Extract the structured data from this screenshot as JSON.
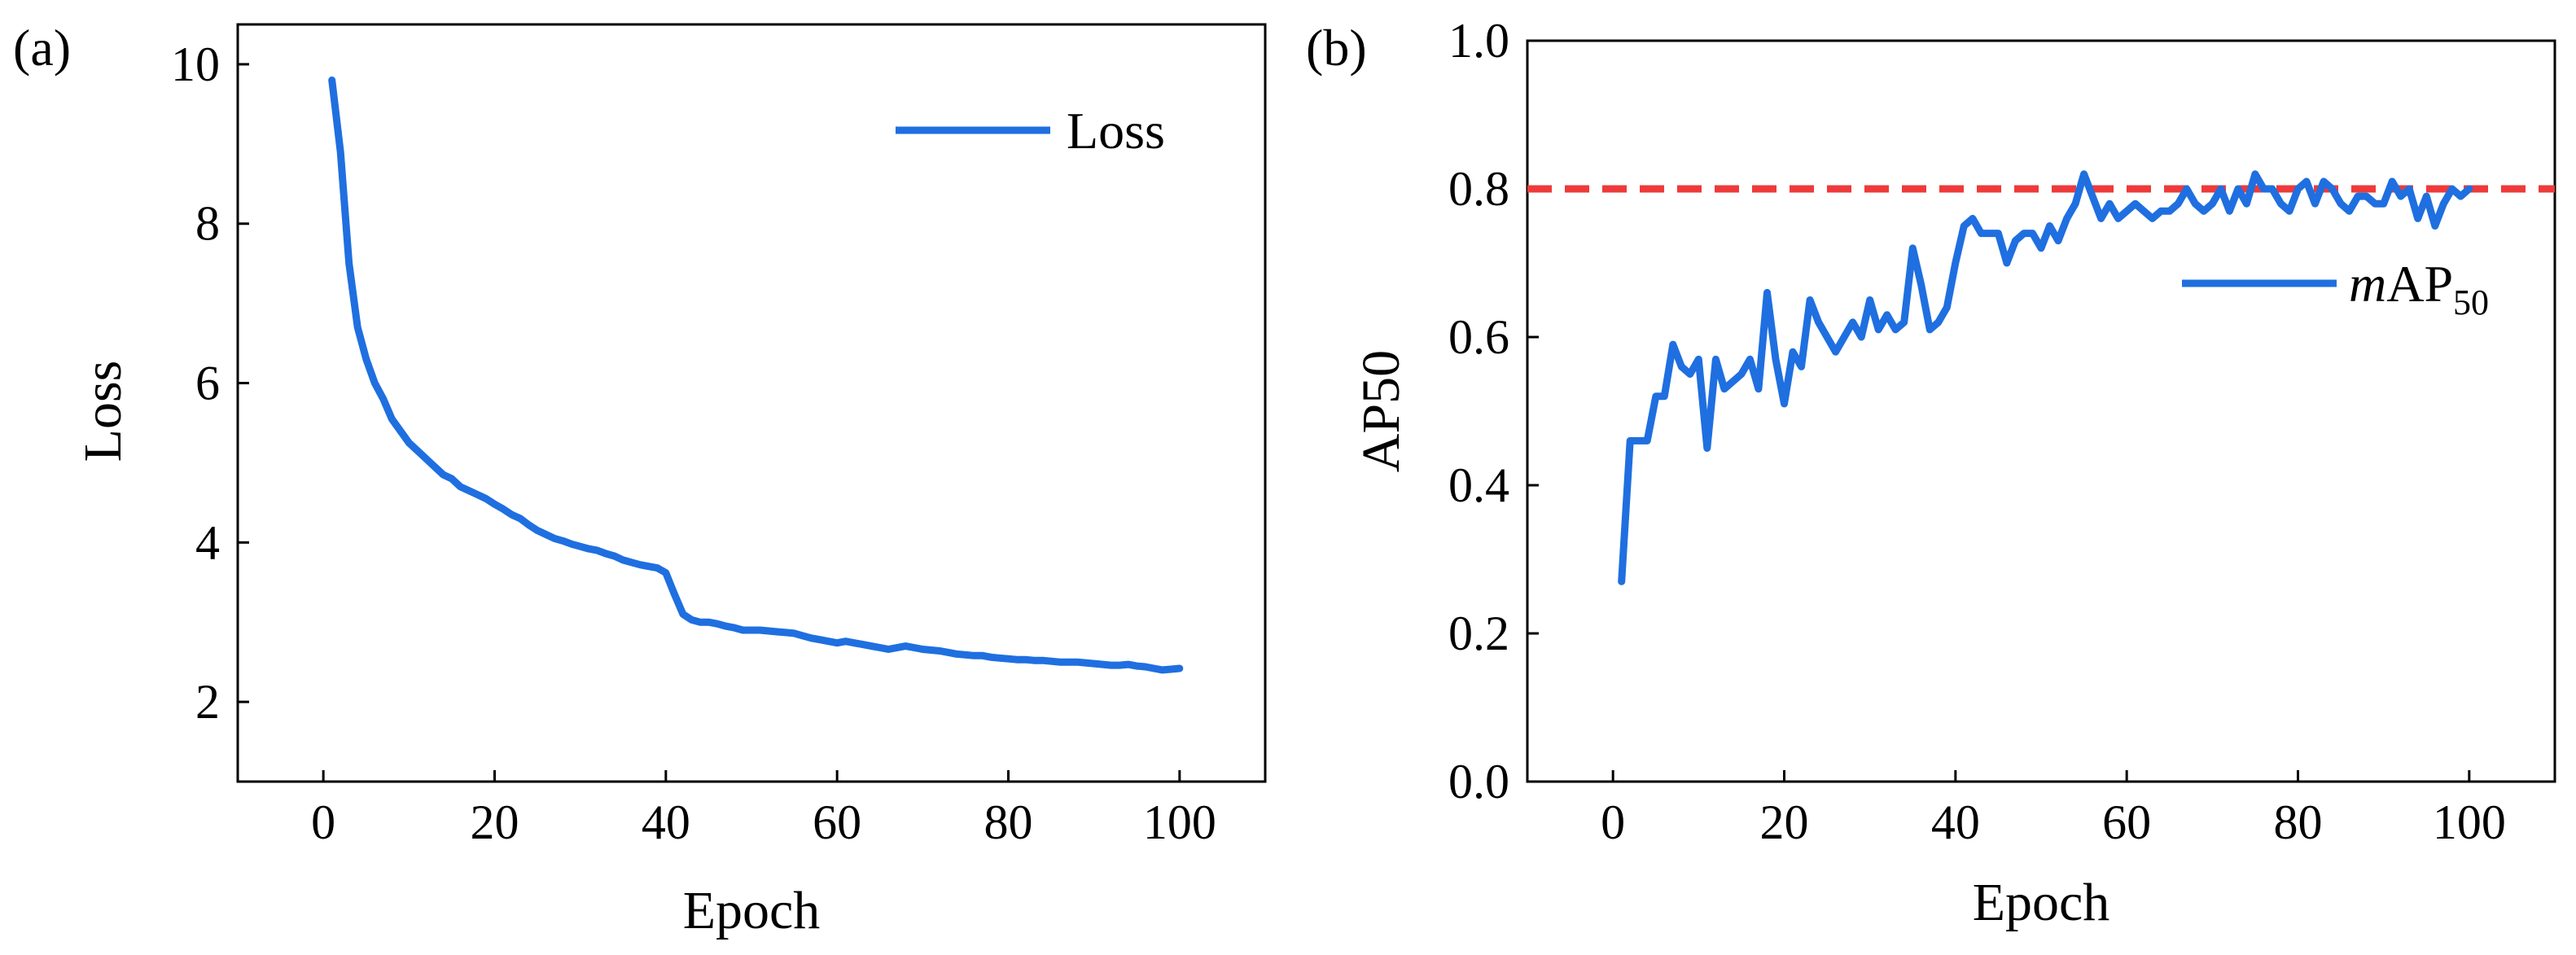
{
  "chart_data": [
    {
      "panel_label": "(a)",
      "type": "line",
      "xlabel": "Epoch",
      "ylabel": "Loss",
      "xlim": [
        -10,
        110
      ],
      "ylim": [
        1,
        10.5
      ],
      "xticks": [
        0,
        20,
        40,
        60,
        80,
        100
      ],
      "yticks": [
        2,
        4,
        6,
        8,
        10
      ],
      "xtick_labels": [
        "0",
        "20",
        "40",
        "60",
        "80",
        "100"
      ],
      "ytick_labels": [
        "2",
        "4",
        "6",
        "8",
        "10"
      ],
      "legend": "top-right",
      "series": [
        {
          "name": "Loss",
          "color": "#1f6fe0",
          "x": [
            1,
            2,
            3,
            4,
            5,
            6,
            7,
            8,
            9,
            10,
            11,
            12,
            13,
            14,
            15,
            16,
            17,
            18,
            19,
            20,
            21,
            22,
            23,
            24,
            25,
            26,
            27,
            28,
            29,
            30,
            31,
            32,
            33,
            34,
            35,
            36,
            37,
            38,
            39,
            40,
            41,
            42,
            43,
            44,
            45,
            46,
            47,
            48,
            49,
            50,
            51,
            52,
            53,
            54,
            55,
            56,
            57,
            58,
            59,
            60,
            61,
            62,
            63,
            64,
            65,
            66,
            67,
            68,
            69,
            70,
            71,
            72,
            73,
            74,
            75,
            76,
            77,
            78,
            79,
            80,
            81,
            82,
            83,
            84,
            85,
            86,
            87,
            88,
            89,
            90,
            91,
            92,
            93,
            94,
            95,
            96,
            97,
            98,
            99,
            100
          ],
          "values": [
            9.8,
            8.9,
            7.5,
            6.7,
            6.3,
            6.0,
            5.8,
            5.55,
            5.4,
            5.25,
            5.15,
            5.05,
            4.95,
            4.85,
            4.8,
            4.7,
            4.65,
            4.6,
            4.55,
            4.48,
            4.42,
            4.35,
            4.3,
            4.22,
            4.15,
            4.1,
            4.05,
            4.02,
            3.98,
            3.95,
            3.92,
            3.9,
            3.86,
            3.83,
            3.78,
            3.75,
            3.72,
            3.7,
            3.68,
            3.62,
            3.35,
            3.1,
            3.03,
            3.0,
            3.0,
            2.98,
            2.95,
            2.93,
            2.9,
            2.9,
            2.9,
            2.89,
            2.88,
            2.87,
            2.86,
            2.83,
            2.8,
            2.78,
            2.76,
            2.74,
            2.76,
            2.74,
            2.72,
            2.7,
            2.68,
            2.66,
            2.68,
            2.7,
            2.68,
            2.66,
            2.65,
            2.64,
            2.62,
            2.6,
            2.59,
            2.58,
            2.58,
            2.56,
            2.55,
            2.54,
            2.53,
            2.53,
            2.52,
            2.52,
            2.51,
            2.5,
            2.5,
            2.5,
            2.49,
            2.48,
            2.47,
            2.46,
            2.46,
            2.47,
            2.45,
            2.44,
            2.42,
            2.4,
            2.41,
            2.42
          ]
        }
      ]
    },
    {
      "panel_label": "(b)",
      "type": "line",
      "xlabel": "Epoch",
      "ylabel": "AP50",
      "xlim": [
        -10,
        110
      ],
      "ylim": [
        0.0,
        1.0
      ],
      "xticks": [
        0,
        20,
        40,
        60,
        80,
        100
      ],
      "yticks": [
        0.0,
        0.2,
        0.4,
        0.6,
        0.8,
        1.0
      ],
      "xtick_labels": [
        "0",
        "20",
        "40",
        "60",
        "80",
        "100"
      ],
      "ytick_labels": [
        "0.0",
        "0.2",
        "0.4",
        "0.6",
        "0.8",
        "1.0"
      ],
      "legend": "right",
      "reference_line": {
        "y": 0.8,
        "style": "dashed",
        "color": "#ee3a3a"
      },
      "series": [
        {
          "name": "mAP50",
          "legend_main": "m",
          "legend_rest": "AP",
          "legend_sub": "50",
          "color": "#1f6fe0",
          "x": [
            1,
            2,
            3,
            4,
            5,
            6,
            7,
            8,
            9,
            10,
            11,
            12,
            13,
            14,
            15,
            16,
            17,
            18,
            19,
            20,
            21,
            22,
            23,
            24,
            25,
            26,
            27,
            28,
            29,
            30,
            31,
            32,
            33,
            34,
            35,
            36,
            37,
            38,
            39,
            40,
            41,
            42,
            43,
            44,
            45,
            46,
            47,
            48,
            49,
            50,
            51,
            52,
            53,
            54,
            55,
            56,
            57,
            58,
            59,
            60,
            61,
            62,
            63,
            64,
            65,
            66,
            67,
            68,
            69,
            70,
            71,
            72,
            73,
            74,
            75,
            76,
            77,
            78,
            79,
            80,
            81,
            82,
            83,
            84,
            85,
            86,
            87,
            88,
            89,
            90,
            91,
            92,
            93,
            94,
            95,
            96,
            97,
            98,
            99,
            100
          ],
          "values": [
            0.27,
            0.46,
            0.46,
            0.46,
            0.52,
            0.52,
            0.59,
            0.56,
            0.55,
            0.57,
            0.45,
            0.57,
            0.53,
            0.54,
            0.55,
            0.57,
            0.53,
            0.66,
            0.57,
            0.51,
            0.58,
            0.56,
            0.65,
            0.62,
            0.6,
            0.58,
            0.6,
            0.62,
            0.6,
            0.65,
            0.61,
            0.63,
            0.61,
            0.62,
            0.72,
            0.67,
            0.61,
            0.62,
            0.64,
            0.7,
            0.75,
            0.76,
            0.74,
            0.74,
            0.74,
            0.7,
            0.73,
            0.74,
            0.74,
            0.72,
            0.75,
            0.73,
            0.76,
            0.78,
            0.82,
            0.79,
            0.76,
            0.78,
            0.76,
            0.77,
            0.78,
            0.77,
            0.76,
            0.77,
            0.77,
            0.78,
            0.8,
            0.78,
            0.77,
            0.78,
            0.8,
            0.77,
            0.8,
            0.78,
            0.82,
            0.8,
            0.8,
            0.78,
            0.77,
            0.8,
            0.81,
            0.78,
            0.81,
            0.8,
            0.78,
            0.77,
            0.79,
            0.79,
            0.78,
            0.78,
            0.81,
            0.79,
            0.8,
            0.76,
            0.79,
            0.75,
            0.78,
            0.8,
            0.79,
            0.8
          ]
        }
      ]
    }
  ]
}
